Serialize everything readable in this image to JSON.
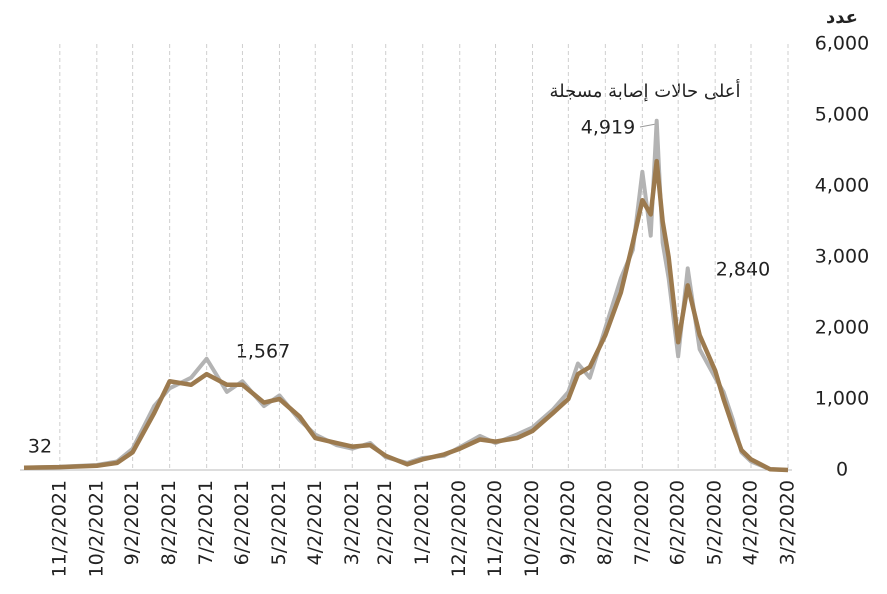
{
  "chart_data": {
    "type": "line",
    "y_label": "عدد",
    "annotations": [
      "32",
      "1,567",
      "4,919",
      "2,840",
      "أعلى حالات إصابة مسجلة"
    ],
    "x": [
      "12/2/2021",
      "11/2/2021",
      "10/2/2021",
      "9/15/2021",
      "9/2/2021",
      "8/15/2021",
      "8/2/2021",
      "7/15/2021",
      "7/2/2021",
      "6/15/2021",
      "6/2/2021",
      "5/15/2021",
      "5/2/2021",
      "4/15/2021",
      "4/2/2021",
      "3/15/2021",
      "3/2/2021",
      "2/15/2021",
      "2/2/2021",
      "1/15/2021",
      "1/2/2021",
      "12/15/2020",
      "12/2/2020",
      "11/15/2020",
      "11/2/2020",
      "10/15/2020",
      "10/2/2020",
      "9/15/2020",
      "9/2/2020",
      "8/25/2020",
      "8/15/2020",
      "8/2/2020",
      "7/20/2020",
      "7/10/2020",
      "7/2/2020",
      "6/25/2020",
      "6/20/2020",
      "6/15/2020",
      "6/10/2020",
      "6/2/2020",
      "5/25/2020",
      "5/15/2020",
      "5/2/2020",
      "4/25/2020",
      "4/17/2020",
      "4/10/2020",
      "4/2/2020",
      "3/17/2020",
      "3/2/2020"
    ],
    "series": [
      {
        "color": "#b3b3b3",
        "values": [
          32,
          45,
          70,
          120,
          300,
          900,
          1150,
          1300,
          1567,
          1100,
          1250,
          900,
          1050,
          700,
          500,
          350,
          300,
          380,
          180,
          100,
          170,
          200,
          320,
          480,
          380,
          500,
          600,
          850,
          1100,
          1500,
          1300,
          2000,
          2700,
          3100,
          4200,
          3300,
          4919,
          3200,
          2700,
          1600,
          2840,
          1700,
          1300,
          1100,
          700,
          250,
          120,
          10,
          0
        ]
      },
      {
        "color": "#9c7a4e",
        "values": [
          32,
          40,
          60,
          100,
          250,
          800,
          1250,
          1200,
          1350,
          1200,
          1200,
          950,
          1000,
          750,
          450,
          380,
          330,
          350,
          200,
          80,
          150,
          220,
          300,
          430,
          400,
          450,
          550,
          800,
          1000,
          1350,
          1450,
          1900,
          2500,
          3200,
          3800,
          3600,
          4350,
          3500,
          3000,
          1800,
          2600,
          1900,
          1400,
          1000,
          600,
          280,
          150,
          10,
          0
        ]
      }
    ],
    "xlim": [
      "12/2/2021",
      "3/2/2020"
    ],
    "xticks": [
      "11/2/2021",
      "10/2/2021",
      "9/2/2021",
      "8/2/2021",
      "7/2/2021",
      "6/2/2021",
      "5/2/2021",
      "4/2/2021",
      "3/2/2021",
      "2/2/2021",
      "1/2/2021",
      "12/2/2020",
      "11/2/2020",
      "10/2/2020",
      "9/2/2020",
      "8/2/2020",
      "7/2/2020",
      "6/2/2020",
      "5/2/2020",
      "4/2/2020",
      "3/2/2020"
    ],
    "ylim": [
      0,
      6000
    ],
    "yticks": [
      0,
      {
        "value": 1000,
        "label": "1,000"
      },
      {
        "value": 2000,
        "label": "2,000"
      },
      {
        "value": 3000,
        "label": "3,000"
      },
      {
        "value": 4000,
        "label": "4,000"
      },
      {
        "value": 5000,
        "label": "5,000"
      },
      {
        "value": 6000,
        "label": "6,000"
      }
    ],
    "grid": true
  }
}
